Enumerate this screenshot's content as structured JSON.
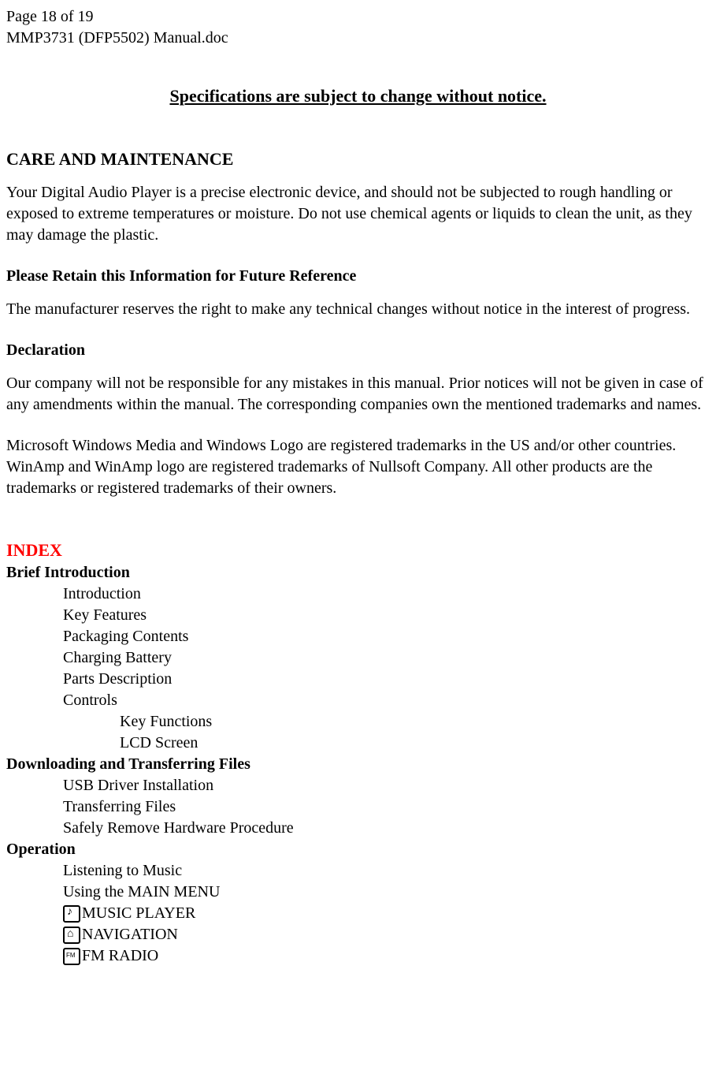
{
  "header": {
    "page_info": "Page 18 of 19",
    "doc_name": "MMP3731 (DFP5502) Manual.doc"
  },
  "notice": "Specifications are subject to change without notice.",
  "care": {
    "heading": "CARE AND MAINTENANCE",
    "text": "Your Digital Audio Player is a precise electronic device, and should not be subjected to rough handling or exposed to extreme temperatures or moisture.  Do not use chemical agents or liquids to clean the unit, as they may damage the plastic."
  },
  "retain": {
    "heading": "Please Retain this Information for Future Reference",
    "text": "The manufacturer reserves the right to make any technical changes without notice in the interest of progress."
  },
  "declaration": {
    "heading": "Declaration",
    "text1": "Our company will not be responsible for any mistakes in this manual.  Prior notices will not be given in case of any amendments within the manual.  The corresponding companies own the mentioned trademarks and names.",
    "text2": "Microsoft Windows Media and Windows Logo are registered trademarks in the US and/or other countries.  WinAmp and WinAmp logo are registered trademarks of Nullsoft Company. All other products are the trademarks or registered trademarks of their owners."
  },
  "index": {
    "title": "INDEX",
    "sections": [
      {
        "heading": "Brief Introduction",
        "items": [
          {
            "text": "Introduction",
            "level": 1
          },
          {
            "text": "Key Features",
            "level": 1
          },
          {
            "text": "Packaging Contents",
            "level": 1
          },
          {
            "text": "Charging Battery",
            "level": 1
          },
          {
            "text": "Parts Description",
            "level": 1
          },
          {
            "text": "Controls",
            "level": 1
          },
          {
            "text": "Key Functions",
            "level": 2
          },
          {
            "text": "LCD Screen",
            "level": 2
          }
        ]
      },
      {
        "heading": "Downloading and Transferring Files",
        "items": [
          {
            "text": "USB Driver Installation",
            "level": 1
          },
          {
            "text": "Transferring Files",
            "level": 1
          },
          {
            "text": "Safely Remove Hardware Procedure",
            "level": 1
          }
        ]
      },
      {
        "heading": "Operation",
        "items": [
          {
            "text": "Listening to Music",
            "level": 1
          },
          {
            "text": "Using the MAIN MENU",
            "level": 1
          },
          {
            "text": "MUSIC PLAYER",
            "level": 1,
            "icon": "music"
          },
          {
            "text": "NAVIGATION",
            "level": 1,
            "icon": "nav"
          },
          {
            "text": "FM RADIO",
            "level": 1,
            "icon": "fm"
          }
        ]
      }
    ]
  }
}
